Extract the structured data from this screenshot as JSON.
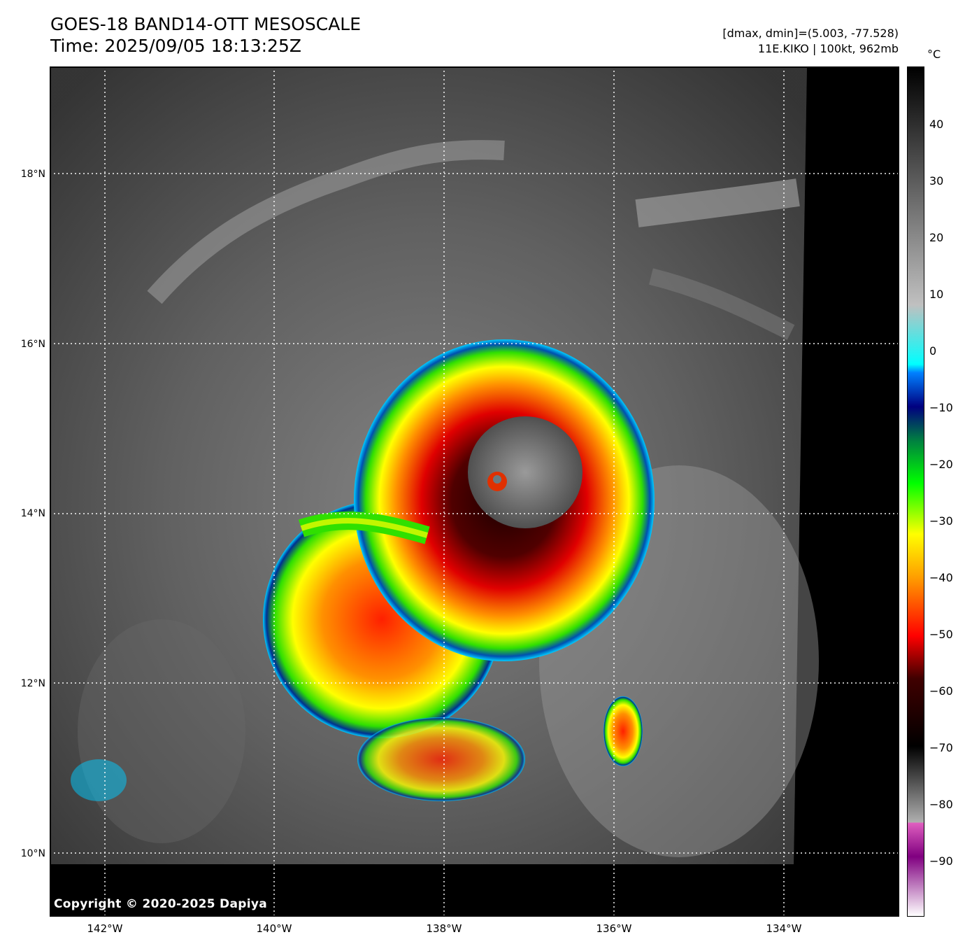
{
  "header": {
    "title": "GOES-18 BAND14-OTT MESOSCALE",
    "time": "Time: 2025/09/05 18:13:25Z",
    "dminmax": "[dmax, dmin]=(5.003, -77.528)",
    "storm": "11E.KIKO | 100kt, 962mb"
  },
  "map": {
    "copyright": "Copyright © 2020-2025 Dapiya",
    "lat_labels": [
      "18°N",
      "16°N",
      "14°N",
      "12°N",
      "10°N"
    ],
    "lon_labels": [
      "142°W",
      "140°W",
      "138°W",
      "136°W",
      "134°W"
    ]
  },
  "colorbar": {
    "unit": "°C",
    "ticks": [
      "40",
      "30",
      "20",
      "10",
      "0",
      "−10",
      "−20",
      "−30",
      "−40",
      "−50",
      "−60",
      "−70",
      "−80",
      "−90"
    ],
    "colors": [
      "#ffffff",
      "#800080",
      "#e060c0",
      "#b0b0b0",
      "#000000",
      "#400000",
      "#ff0000",
      "#ffa000",
      "#ffff00",
      "#00ff00",
      "#008040",
      "#000080",
      "#0080ff",
      "#00ffff",
      "#c0c0c0",
      "#000000"
    ]
  }
}
